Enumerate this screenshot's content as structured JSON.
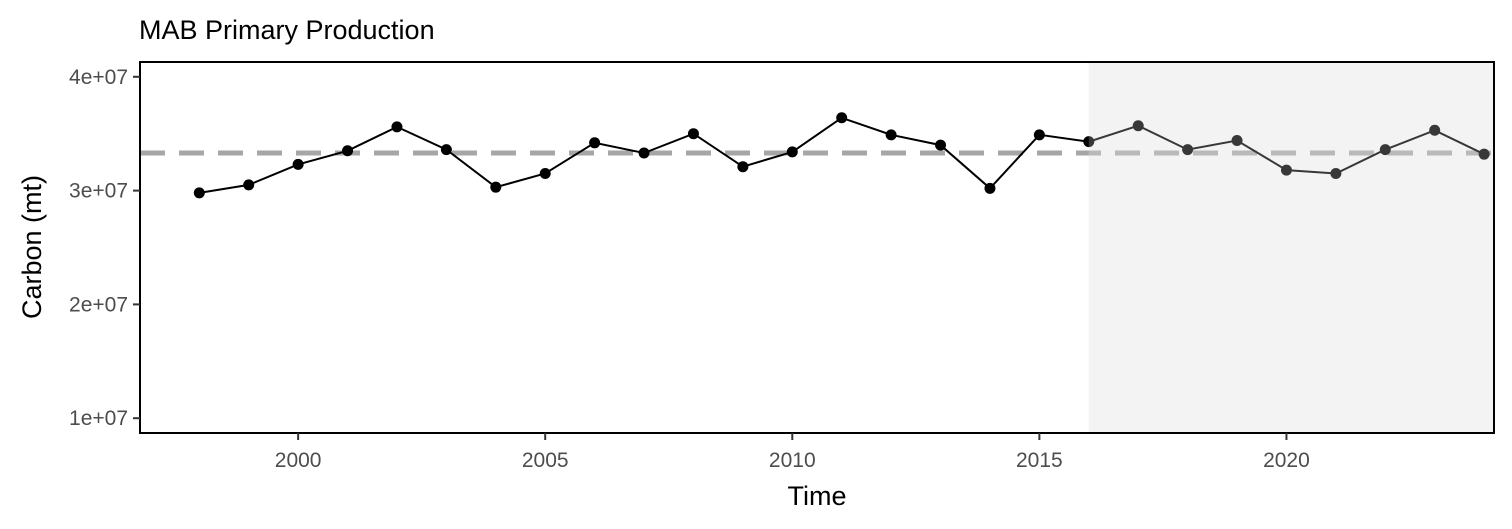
{
  "chart_data": {
    "type": "line",
    "title": "MAB Primary Production",
    "xlabel": "Time",
    "ylabel": "Carbon (mt)",
    "xlim": [
      1996.8,
      2024.2
    ],
    "ylim": [
      8700000,
      41300000
    ],
    "x_ticks": [
      2000,
      2005,
      2010,
      2015,
      2020
    ],
    "x_tick_labels": [
      "2000",
      "2005",
      "2010",
      "2015",
      "2020"
    ],
    "y_ticks": [
      10000000,
      20000000,
      30000000,
      40000000
    ],
    "y_tick_labels": [
      "1e+07",
      "2e+07",
      "3e+07",
      "4e+07"
    ],
    "grid": false,
    "mean_line": 33300000,
    "shaded_region": [
      2016,
      2024.2
    ],
    "series": [
      {
        "x": [
          1998,
          1999,
          2000,
          2001,
          2002,
          2003,
          2004,
          2005,
          2006,
          2007,
          2008,
          2009,
          2010,
          2011,
          2012,
          2013,
          2014,
          2015,
          2016,
          2017,
          2018,
          2019,
          2020,
          2021,
          2022,
          2023,
          2024
        ],
        "values": [
          29800000,
          30500000,
          32300000,
          33500000,
          35600000,
          33600000,
          30300000,
          31500000,
          34200000,
          33300000,
          35000000,
          32100000,
          33400000,
          36400000,
          34900000,
          34000000,
          30200000,
          34900000,
          34300000,
          35700000,
          33600000,
          34400000,
          31800000,
          31500000,
          33600000,
          35300000,
          33200000
        ]
      }
    ],
    "colors": {
      "line": "#000000",
      "point": "#000000",
      "mean_line": "#a6a6a6",
      "shade": "#f0f0f0",
      "panel_border": "#000000",
      "tick": "#333333"
    }
  }
}
